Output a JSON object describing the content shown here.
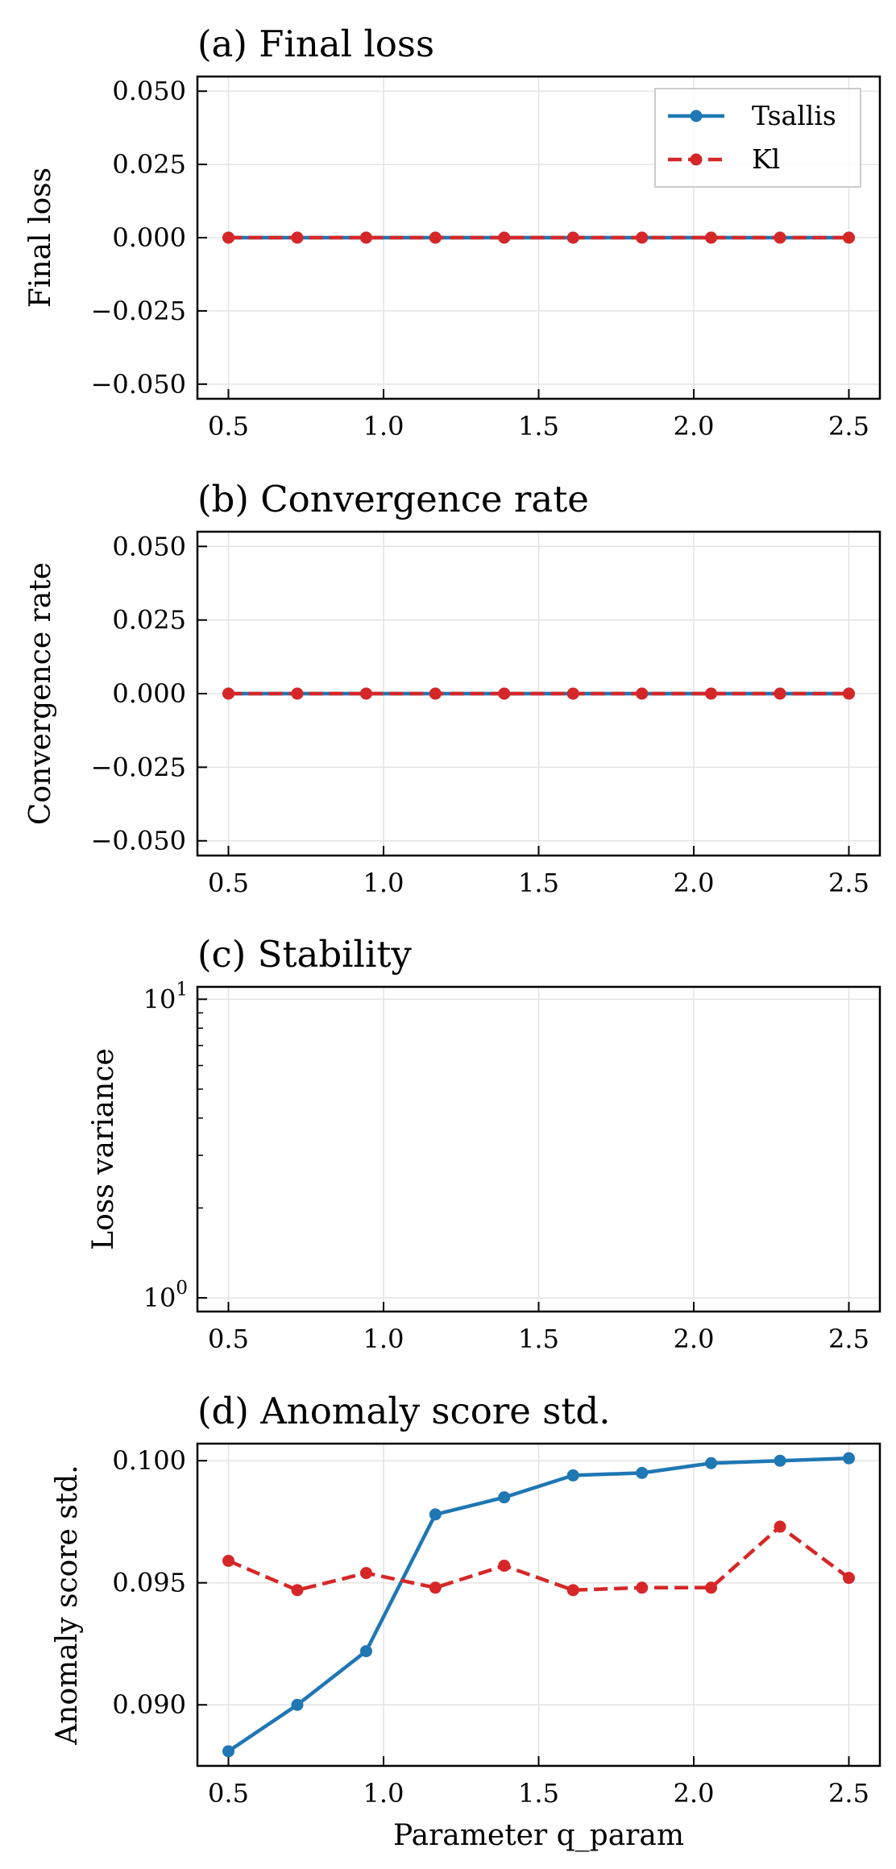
{
  "chart_data": [
    {
      "type": "line",
      "title": "(a) Final loss",
      "xlabel": "",
      "ylabel": "Final loss",
      "yscale": "linear",
      "xlim": [
        0.4,
        2.6
      ],
      "ylim": [
        -0.055,
        0.055
      ],
      "xticks": [
        0.5,
        1.0,
        1.5,
        2.0,
        2.5
      ],
      "xtick_labels": [
        "0.5",
        "1.0",
        "1.5",
        "2.0",
        "2.5"
      ],
      "yticks": [
        -0.05,
        -0.025,
        0.0,
        0.025,
        0.05
      ],
      "ytick_labels": [
        "−0.050",
        "−0.025",
        "0.000",
        "0.025",
        "0.050"
      ],
      "grid": true,
      "legend": "top-right",
      "x": [
        0.5,
        0.722,
        0.944,
        1.167,
        1.389,
        1.611,
        1.833,
        2.056,
        2.278,
        2.5
      ],
      "series": [
        {
          "name": "Tsallis",
          "color": "#1f77b4",
          "style": "solid",
          "values": [
            0,
            0,
            0,
            0,
            0,
            0,
            0,
            0,
            0,
            0
          ]
        },
        {
          "name": "Kl",
          "color": "#d62728",
          "style": "dashed",
          "values": [
            0,
            0,
            0,
            0,
            0,
            0,
            0,
            0,
            0,
            0
          ]
        }
      ]
    },
    {
      "type": "line",
      "title": "(b) Convergence rate",
      "xlabel": "",
      "ylabel": "Convergence rate",
      "yscale": "linear",
      "xlim": [
        0.4,
        2.6
      ],
      "ylim": [
        -0.055,
        0.055
      ],
      "xticks": [
        0.5,
        1.0,
        1.5,
        2.0,
        2.5
      ],
      "xtick_labels": [
        "0.5",
        "1.0",
        "1.5",
        "2.0",
        "2.5"
      ],
      "yticks": [
        -0.05,
        -0.025,
        0.0,
        0.025,
        0.05
      ],
      "ytick_labels": [
        "−0.050",
        "−0.025",
        "0.000",
        "0.025",
        "0.050"
      ],
      "grid": true,
      "x": [
        0.5,
        0.722,
        0.944,
        1.167,
        1.389,
        1.611,
        1.833,
        2.056,
        2.278,
        2.5
      ],
      "series": [
        {
          "name": "Tsallis",
          "color": "#1f77b4",
          "style": "solid",
          "values": [
            0,
            0,
            0,
            0,
            0,
            0,
            0,
            0,
            0,
            0
          ]
        },
        {
          "name": "Kl",
          "color": "#d62728",
          "style": "dashed",
          "values": [
            0,
            0,
            0,
            0,
            0,
            0,
            0,
            0,
            0,
            0
          ]
        }
      ]
    },
    {
      "type": "line",
      "title": "(c) Stability",
      "xlabel": "",
      "ylabel": "Loss variance",
      "yscale": "log",
      "xlim": [
        0.4,
        2.6
      ],
      "ylim": [
        0.9,
        11.0
      ],
      "xticks": [
        0.5,
        1.0,
        1.5,
        2.0,
        2.5
      ],
      "xtick_labels": [
        "0.5",
        "1.0",
        "1.5",
        "2.0",
        "2.5"
      ],
      "yticks": [
        1,
        10
      ],
      "ytick_bases": [
        "10",
        "10"
      ],
      "ytick_exps": [
        "0",
        "1"
      ],
      "grid": true,
      "x": [],
      "series": []
    },
    {
      "type": "line",
      "title": "(d) Anomaly score std.",
      "xlabel": "Parameter q_param",
      "ylabel": "Anomaly score std.",
      "yscale": "linear",
      "xlim": [
        0.4,
        2.6
      ],
      "ylim": [
        0.0875,
        0.1007
      ],
      "xticks": [
        0.5,
        1.0,
        1.5,
        2.0,
        2.5
      ],
      "xtick_labels": [
        "0.5",
        "1.0",
        "1.5",
        "2.0",
        "2.5"
      ],
      "yticks": [
        0.09,
        0.095,
        0.1
      ],
      "ytick_labels": [
        "0.090",
        "0.095",
        "0.100"
      ],
      "grid": true,
      "x": [
        0.5,
        0.722,
        0.944,
        1.167,
        1.389,
        1.611,
        1.833,
        2.056,
        2.278,
        2.5
      ],
      "series": [
        {
          "name": "Tsallis",
          "color": "#1f77b4",
          "style": "solid",
          "values": [
            0.0881,
            0.09,
            0.0922,
            0.0978,
            0.0985,
            0.0994,
            0.0995,
            0.0999,
            0.1,
            0.1001
          ]
        },
        {
          "name": "Kl",
          "color": "#d62728",
          "style": "dashed",
          "values": [
            0.0959,
            0.0947,
            0.0954,
            0.0948,
            0.0957,
            0.0947,
            0.0948,
            0.0948,
            0.0973,
            0.0952
          ]
        }
      ]
    }
  ]
}
